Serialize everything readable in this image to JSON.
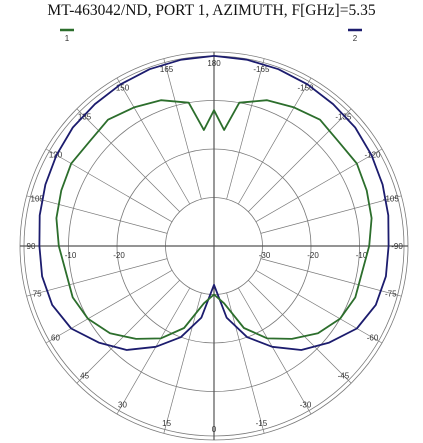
{
  "chart_data": {
    "type": "line",
    "title": "MT-463042/ND, PORT 1, AZIMUTH, F[GHz]=5.35",
    "coordinate_system": "polar",
    "angle_unit": "degrees",
    "angular_tick_labels": [
      "165",
      "150",
      "135",
      "120",
      "105",
      "90",
      "75",
      "60",
      "45",
      "30",
      "15",
      "0",
      "-15",
      "-30",
      "-45",
      "-60",
      "-75",
      "-90",
      "-105",
      "-120",
      "-135",
      "-150",
      "-165",
      "180"
    ],
    "radial_tick_labels": [
      "-20",
      "-10",
      "-10",
      "-20",
      "-30"
    ],
    "radial_unit": "dB",
    "rlim": [
      -40,
      0
    ],
    "grid": true,
    "legend": [
      {
        "label": "1",
        "color": "#2c6e2c"
      },
      {
        "label": "2",
        "color": "#1c1c6e"
      }
    ],
    "series": [
      {
        "color": "#1c1c6e",
        "angles": [
          0,
          10,
          20,
          30,
          40,
          50,
          60,
          70,
          80,
          90,
          100,
          110,
          120,
          130,
          140,
          150,
          160,
          170,
          180,
          190,
          200,
          210,
          220,
          230,
          240,
          250,
          260,
          270,
          280,
          290,
          300,
          310,
          320,
          330,
          340,
          350
        ],
        "values": [
          -32,
          -25,
          -20,
          -16,
          -12,
          -9,
          -6,
          -4.5,
          -4,
          -4,
          -3.5,
          -3,
          -2.5,
          -2,
          -1.8,
          -1.5,
          -1.2,
          -1,
          -0.8,
          -1,
          -1.2,
          -1.5,
          -1.8,
          -2,
          -2.5,
          -3,
          -3.5,
          -4,
          -4,
          -4.5,
          -6,
          -9,
          -12,
          -16,
          -20,
          -25
        ]
      },
      {
        "color": "#2c6e2c",
        "angles": [
          0,
          10,
          20,
          30,
          40,
          50,
          60,
          70,
          80,
          90,
          100,
          110,
          120,
          130,
          140,
          150,
          160,
          170,
          175,
          180,
          185,
          190,
          200,
          210,
          220,
          230,
          240,
          250,
          260,
          270,
          280,
          290,
          300,
          310,
          320,
          330,
          340,
          350
        ],
        "values": [
          -30,
          -28,
          -22,
          -18,
          -15,
          -12,
          -10,
          -9,
          -9,
          -8,
          -7,
          -6.5,
          -6,
          -6.5,
          -6,
          -7,
          -8,
          -10,
          -16,
          -12,
          -16,
          -10,
          -8,
          -7,
          -6,
          -6.5,
          -6,
          -6.5,
          -7,
          -8,
          -9,
          -9,
          -10,
          -12,
          -15,
          -18,
          -22,
          -28
        ]
      }
    ]
  }
}
